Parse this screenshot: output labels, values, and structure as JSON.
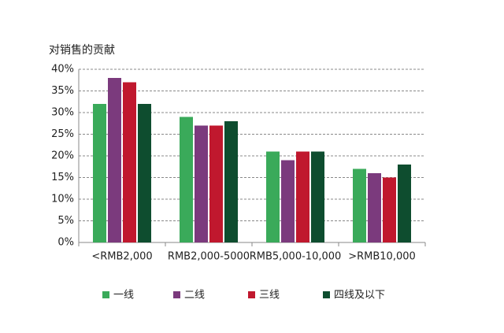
{
  "chart_data": {
    "type": "bar",
    "y_label": "对销售的贡献",
    "categories": [
      "<RMB2,000",
      "RMB2,000-5000",
      "RMB5,000-10,000",
      ">RMB10,000"
    ],
    "series": [
      {
        "name": "一线",
        "color": "#3aaa5a",
        "values": [
          32,
          29,
          21,
          17
        ]
      },
      {
        "name": "二线",
        "color": "#7b3a7d",
        "values": [
          38,
          27,
          19,
          16
        ]
      },
      {
        "name": "三线",
        "color": "#c0182e",
        "values": [
          37,
          27,
          21,
          15
        ]
      },
      {
        "name": "四线及以下",
        "color": "#0e4d2f",
        "values": [
          32,
          28,
          21,
          18
        ]
      }
    ],
    "ylim": [
      0,
      40
    ],
    "yticks": [
      {
        "value": 0,
        "label": "0%"
      },
      {
        "value": 5,
        "label": "5%"
      },
      {
        "value": 10,
        "label": "10%"
      },
      {
        "value": 15,
        "label": "15%"
      },
      {
        "value": 20,
        "label": "20%"
      },
      {
        "value": 25,
        "label": "25%"
      },
      {
        "value": 30,
        "label": "30%"
      },
      {
        "value": 35,
        "label": "35%"
      },
      {
        "value": 40,
        "label": "40%"
      }
    ],
    "grid": true
  }
}
